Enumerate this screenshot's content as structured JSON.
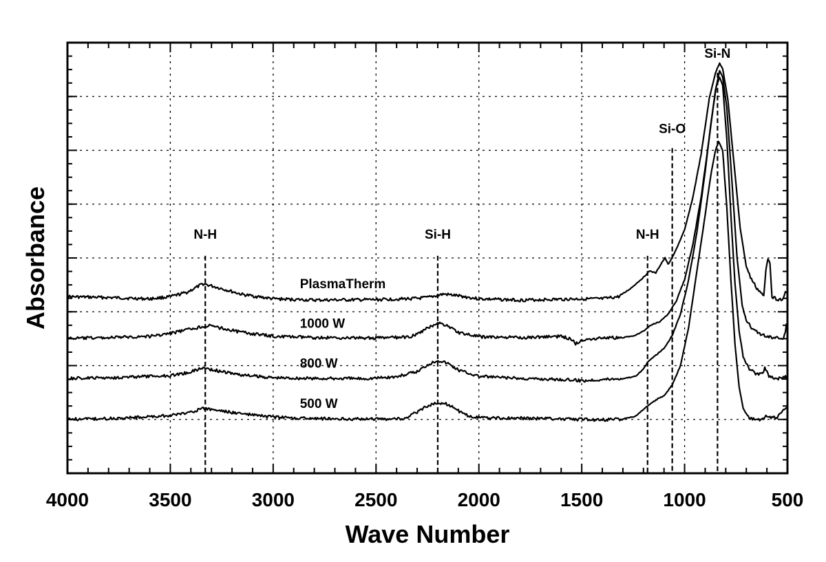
{
  "chart_data": {
    "type": "line",
    "xlabel": "Wave Number",
    "ylabel": "Absorbance",
    "xlim": [
      4000,
      500
    ],
    "x_reversed": true,
    "ylim": [
      0,
      1
    ],
    "y_tick_labels_shown": false,
    "grid": true,
    "x_ticks": [
      4000,
      3500,
      3000,
      2500,
      2000,
      1500,
      1000,
      500
    ],
    "x_tick_labels": [
      "4000",
      "3500",
      "3000",
      "2500",
      "2000",
      "1500",
      "1000",
      "500"
    ],
    "y_gridlines": [
      0.125,
      0.25,
      0.375,
      0.5,
      0.625,
      0.75,
      0.875
    ],
    "annotations": [
      {
        "label": "N-H",
        "x": 3330,
        "label_y": 0.545,
        "line_top": 0.505
      },
      {
        "label": "Si-H",
        "x": 2200,
        "label_y": 0.545,
        "line_top": 0.505
      },
      {
        "label": "N-H",
        "x": 1180,
        "label_y": 0.545,
        "line_top": 0.505
      },
      {
        "label": "Si-O",
        "x": 1060,
        "label_y": 0.79,
        "line_top": 0.755
      },
      {
        "label": "Si-N",
        "x": 840,
        "label_y": 0.965,
        "line_top": 0.93
      }
    ],
    "series": [
      {
        "name": "PlasmaTherm",
        "label_x": 2870,
        "label_y": 0.43,
        "points": [
          [
            4000,
            0.41
          ],
          [
            3800,
            0.408
          ],
          [
            3600,
            0.405
          ],
          [
            3500,
            0.41
          ],
          [
            3420,
            0.42
          ],
          [
            3340,
            0.44
          ],
          [
            3260,
            0.43
          ],
          [
            3150,
            0.415
          ],
          [
            3000,
            0.405
          ],
          [
            2800,
            0.402
          ],
          [
            2500,
            0.403
          ],
          [
            2300,
            0.406
          ],
          [
            2250,
            0.408
          ],
          [
            2170,
            0.416
          ],
          [
            2100,
            0.412
          ],
          [
            2000,
            0.405
          ],
          [
            1800,
            0.402
          ],
          [
            1600,
            0.404
          ],
          [
            1500,
            0.405
          ],
          [
            1400,
            0.405
          ],
          [
            1320,
            0.41
          ],
          [
            1260,
            0.43
          ],
          [
            1200,
            0.455
          ],
          [
            1170,
            0.47
          ],
          [
            1140,
            0.465
          ],
          [
            1110,
            0.49
          ],
          [
            1095,
            0.5
          ],
          [
            1080,
            0.485
          ],
          [
            1050,
            0.51
          ],
          [
            1000,
            0.565
          ],
          [
            960,
            0.64
          ],
          [
            920,
            0.74
          ],
          [
            880,
            0.87
          ],
          [
            850,
            0.93
          ],
          [
            830,
            0.952
          ],
          [
            815,
            0.94
          ],
          [
            790,
            0.87
          ],
          [
            760,
            0.72
          ],
          [
            730,
            0.57
          ],
          [
            700,
            0.48
          ],
          [
            680,
            0.455
          ],
          [
            650,
            0.43
          ],
          [
            630,
            0.42
          ],
          [
            615,
            0.41
          ],
          [
            605,
            0.47
          ],
          [
            595,
            0.5
          ],
          [
            585,
            0.49
          ],
          [
            575,
            0.41
          ],
          [
            550,
            0.404
          ],
          [
            520,
            0.404
          ],
          [
            510,
            0.42
          ],
          [
            500,
            0.42
          ]
        ]
      },
      {
        "name": "1000 W",
        "label_x": 2870,
        "label_y": 0.338,
        "points": [
          [
            4000,
            0.313
          ],
          [
            3800,
            0.315
          ],
          [
            3600,
            0.318
          ],
          [
            3500,
            0.325
          ],
          [
            3400,
            0.335
          ],
          [
            3320,
            0.343
          ],
          [
            3250,
            0.337
          ],
          [
            3150,
            0.327
          ],
          [
            3000,
            0.318
          ],
          [
            2800,
            0.315
          ],
          [
            2500,
            0.314
          ],
          [
            2350,
            0.316
          ],
          [
            2300,
            0.322
          ],
          [
            2250,
            0.337
          ],
          [
            2200,
            0.35
          ],
          [
            2150,
            0.342
          ],
          [
            2100,
            0.327
          ],
          [
            2000,
            0.317
          ],
          [
            1800,
            0.315
          ],
          [
            1600,
            0.318
          ],
          [
            1550,
            0.312
          ],
          [
            1530,
            0.3
          ],
          [
            1500,
            0.31
          ],
          [
            1400,
            0.315
          ],
          [
            1300,
            0.315
          ],
          [
            1240,
            0.32
          ],
          [
            1200,
            0.33
          ],
          [
            1160,
            0.345
          ],
          [
            1120,
            0.352
          ],
          [
            1080,
            0.37
          ],
          [
            1040,
            0.4
          ],
          [
            1000,
            0.45
          ],
          [
            960,
            0.53
          ],
          [
            920,
            0.64
          ],
          [
            880,
            0.78
          ],
          [
            850,
            0.89
          ],
          [
            830,
            0.935
          ],
          [
            815,
            0.92
          ],
          [
            795,
            0.85
          ],
          [
            770,
            0.68
          ],
          [
            745,
            0.5
          ],
          [
            720,
            0.39
          ],
          [
            700,
            0.355
          ],
          [
            670,
            0.335
          ],
          [
            640,
            0.325
          ],
          [
            600,
            0.317
          ],
          [
            560,
            0.315
          ],
          [
            520,
            0.313
          ],
          [
            510,
            0.33
          ],
          [
            505,
            0.345
          ],
          [
            500,
            0.33
          ]
        ]
      },
      {
        "name": "800 W",
        "label_x": 2870,
        "label_y": 0.245,
        "points": [
          [
            4000,
            0.22
          ],
          [
            3800,
            0.222
          ],
          [
            3600,
            0.225
          ],
          [
            3500,
            0.227
          ],
          [
            3420,
            0.233
          ],
          [
            3340,
            0.245
          ],
          [
            3260,
            0.237
          ],
          [
            3150,
            0.228
          ],
          [
            3000,
            0.222
          ],
          [
            2800,
            0.22
          ],
          [
            2550,
            0.22
          ],
          [
            2400,
            0.224
          ],
          [
            2300,
            0.236
          ],
          [
            2250,
            0.252
          ],
          [
            2200,
            0.263
          ],
          [
            2150,
            0.255
          ],
          [
            2100,
            0.24
          ],
          [
            2000,
            0.225
          ],
          [
            1800,
            0.22
          ],
          [
            1600,
            0.218
          ],
          [
            1500,
            0.215
          ],
          [
            1400,
            0.218
          ],
          [
            1300,
            0.22
          ],
          [
            1240,
            0.225
          ],
          [
            1200,
            0.242
          ],
          [
            1180,
            0.258
          ],
          [
            1150,
            0.27
          ],
          [
            1100,
            0.29
          ],
          [
            1060,
            0.32
          ],
          [
            1020,
            0.37
          ],
          [
            980,
            0.45
          ],
          [
            940,
            0.56
          ],
          [
            900,
            0.7
          ],
          [
            870,
            0.82
          ],
          [
            845,
            0.9
          ],
          [
            830,
            0.92
          ],
          [
            815,
            0.9
          ],
          [
            795,
            0.78
          ],
          [
            775,
            0.6
          ],
          [
            755,
            0.44
          ],
          [
            735,
            0.33
          ],
          [
            715,
            0.27
          ],
          [
            690,
            0.245
          ],
          [
            650,
            0.23
          ],
          [
            620,
            0.23
          ],
          [
            612,
            0.245
          ],
          [
            600,
            0.24
          ],
          [
            590,
            0.225
          ],
          [
            560,
            0.22
          ],
          [
            530,
            0.22
          ],
          [
            510,
            0.225
          ],
          [
            500,
            0.22
          ]
        ]
      },
      {
        "name": "500 W",
        "label_x": 2870,
        "label_y": 0.152,
        "points": [
          [
            4000,
            0.125
          ],
          [
            3800,
            0.127
          ],
          [
            3650,
            0.13
          ],
          [
            3500,
            0.134
          ],
          [
            3420,
            0.14
          ],
          [
            3340,
            0.15
          ],
          [
            3270,
            0.146
          ],
          [
            3150,
            0.138
          ],
          [
            3000,
            0.13
          ],
          [
            2800,
            0.127
          ],
          [
            2500,
            0.126
          ],
          [
            2350,
            0.127
          ],
          [
            2320,
            0.137
          ],
          [
            2270,
            0.151
          ],
          [
            2200,
            0.165
          ],
          [
            2150,
            0.16
          ],
          [
            2100,
            0.145
          ],
          [
            2050,
            0.133
          ],
          [
            1950,
            0.128
          ],
          [
            1800,
            0.128
          ],
          [
            1600,
            0.126
          ],
          [
            1400,
            0.124
          ],
          [
            1300,
            0.126
          ],
          [
            1240,
            0.132
          ],
          [
            1200,
            0.148
          ],
          [
            1170,
            0.16
          ],
          [
            1130,
            0.173
          ],
          [
            1100,
            0.18
          ],
          [
            1060,
            0.205
          ],
          [
            1020,
            0.25
          ],
          [
            980,
            0.34
          ],
          [
            940,
            0.47
          ],
          [
            900,
            0.6
          ],
          [
            870,
            0.7
          ],
          [
            850,
            0.75
          ],
          [
            835,
            0.77
          ],
          [
            815,
            0.75
          ],
          [
            795,
            0.62
          ],
          [
            775,
            0.45
          ],
          [
            755,
            0.3
          ],
          [
            735,
            0.2
          ],
          [
            715,
            0.15
          ],
          [
            690,
            0.13
          ],
          [
            660,
            0.125
          ],
          [
            620,
            0.125
          ],
          [
            600,
            0.135
          ],
          [
            580,
            0.13
          ],
          [
            550,
            0.13
          ],
          [
            520,
            0.15
          ],
          [
            500,
            0.155
          ]
        ]
      }
    ]
  }
}
